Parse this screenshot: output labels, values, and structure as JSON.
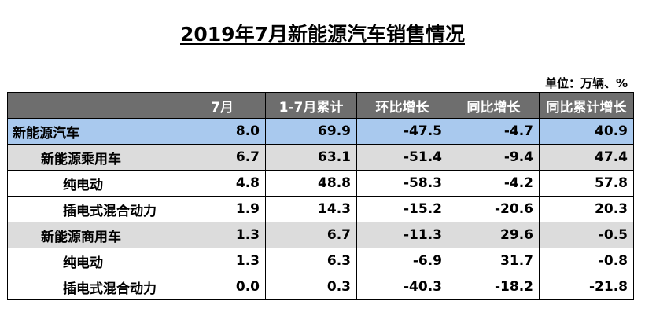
{
  "title": "2019年7月新能源汽车销售情况",
  "unit": "单位：万辆、%",
  "table": {
    "headers": [
      "",
      "7月",
      "1-7月累计",
      "环比增长",
      "同比增长",
      "同比累计增长"
    ],
    "rows": [
      {
        "name": "新能源汽车",
        "level": 0,
        "values": [
          "8.0",
          "69.9",
          "-47.5",
          "-4.7",
          "40.9"
        ]
      },
      {
        "name": "新能源乘用车",
        "level": 1,
        "values": [
          "6.7",
          "63.1",
          "-51.4",
          "-9.4",
          "47.4"
        ]
      },
      {
        "name": "纯电动",
        "level": 2,
        "values": [
          "4.8",
          "48.8",
          "-58.3",
          "-4.2",
          "57.8"
        ]
      },
      {
        "name": "插电式混合动力",
        "level": 2,
        "values": [
          "1.9",
          "14.3",
          "-15.2",
          "-20.6",
          "20.3"
        ]
      },
      {
        "name": "新能源商用车",
        "level": 1,
        "values": [
          "1.3",
          "6.7",
          "-11.3",
          "29.6",
          "-0.5"
        ]
      },
      {
        "name": "纯电动",
        "level": 2,
        "values": [
          "1.3",
          "6.3",
          "-6.9",
          "31.7",
          "-0.8"
        ]
      },
      {
        "name": "插电式混合动力",
        "level": 2,
        "values": [
          "0.0",
          "0.3",
          "-40.3",
          "-18.2",
          "-21.8"
        ]
      }
    ]
  },
  "colors": {
    "header_bg": "#6e6e6e",
    "total_row_bg": "#a9c9ee",
    "subtotal_row_bg": "#dcdcdc"
  }
}
